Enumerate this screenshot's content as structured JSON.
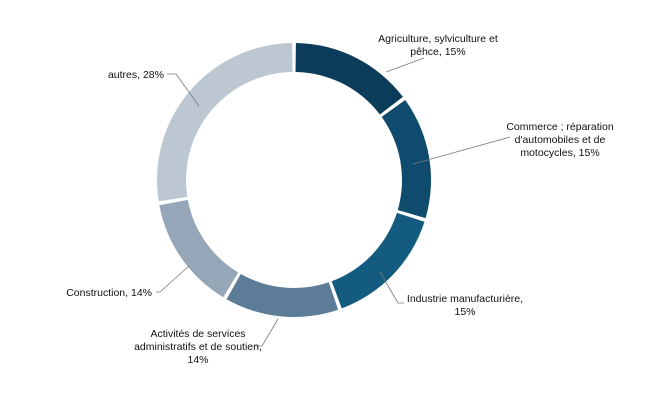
{
  "chart_data": {
    "type": "pie",
    "donut": true,
    "slices": [
      {
        "label": "Agriculture, sylviculture et pêhce",
        "value": 15,
        "display_label": [
          "Agriculture, sylviculture et",
          "pêhce, 15%"
        ],
        "color": "#0b3c59"
      },
      {
        "label": "Commerce ; réparation d'automobiles et de motocycles",
        "value": 15,
        "display_label": [
          "Commerce ; réparation",
          "d'automobiles et de",
          "motocycles, 15%"
        ],
        "color": "#0e4b6c"
      },
      {
        "label": "Industrie manufacturière",
        "value": 15,
        "display_label": [
          "Industrie manufacturière,",
          "15%"
        ],
        "color": "#135c80"
      },
      {
        "label": "Activités de services administratifs et de soutien",
        "value": 14,
        "display_label": [
          "Activités de services",
          "administratifs et de soutien,",
          "14%"
        ],
        "color": "#5d7c98"
      },
      {
        "label": "Construction",
        "value": 14,
        "display_label": [
          "Construction, 14%"
        ],
        "color": "#94a6b8"
      },
      {
        "label": "autres",
        "value": 28,
        "display_label": [
          "autres, 28%"
        ],
        "color": "#bcc7d2"
      }
    ],
    "legend": "none",
    "data_labels": "outside with leader lines"
  }
}
